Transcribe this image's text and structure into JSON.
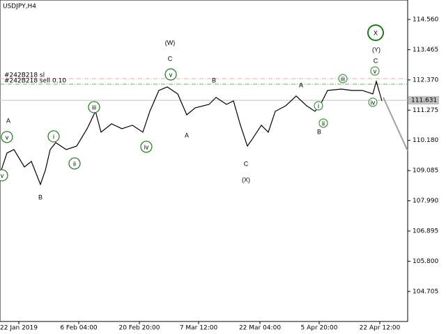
{
  "chart_data": {
    "type": "line",
    "symbol": "USDJPY,H4",
    "xlim": [
      0,
      585
    ],
    "ylim": [
      103.617,
      115.266
    ],
    "xticks": [
      {
        "value": 27,
        "label": "22 Jan 2019"
      },
      {
        "value": 113,
        "label": "6 Feb 04:00"
      },
      {
        "value": 200,
        "label": "20 Feb 20:00"
      },
      {
        "value": 285,
        "label": "7 Mar 12:00"
      },
      {
        "value": 373,
        "label": "22 Mar 04:00"
      },
      {
        "value": 458,
        "label": "5 Apr 20:00"
      },
      {
        "value": 545,
        "label": "22 Apr 12:00"
      }
    ],
    "yticks": [
      {
        "value": 114.56,
        "label": "114.560"
      },
      113.465,
      {
        "value": 112.37,
        "label": "112.370"
      },
      111.275,
      {
        "value": 110.18,
        "label": "110.180"
      },
      109.085,
      {
        "value": 107.99,
        "label": "107.990"
      },
      106.895,
      {
        "value": 105.8,
        "label": "105.800"
      },
      104.705
    ],
    "series": [
      {
        "color": "#000000",
        "x": [
          0,
          10,
          20,
          35,
          45,
          58,
          65,
          72,
          80,
          95,
          110,
          125,
          137,
          145,
          160,
          175,
          190,
          205,
          215,
          228,
          240,
          255,
          268,
          280,
          300,
          310,
          325,
          335,
          345,
          355,
          362,
          375,
          385,
          395,
          410,
          425,
          440,
          452,
          460,
          470,
          490,
          505,
          520,
          535,
          540,
          548
        ],
        "values": [
          108.963,
          109.72,
          109.846,
          109.215,
          109.417,
          108.585,
          109.089,
          109.846,
          110.098,
          109.846,
          109.972,
          110.602,
          111.232,
          110.476,
          110.778,
          110.602,
          110.728,
          110.476,
          111.232,
          111.989,
          112.115,
          111.863,
          111.106,
          111.358,
          111.484,
          111.736,
          111.484,
          111.61,
          110.728,
          109.972,
          110.224,
          110.728,
          110.476,
          111.232,
          111.434,
          111.787,
          111.434,
          111.232,
          111.484,
          111.989,
          112.039,
          111.989,
          111.989,
          111.863,
          112.316,
          111.61
        ]
      },
      {
        "color": "#a0a0a0",
        "x": [
          550,
          585
        ],
        "values": [
          111.736,
          109.8
        ]
      }
    ],
    "levels": [
      {
        "label": "#242B218 sl",
        "value": 112.417,
        "color": "#e8a898"
      },
      {
        "label": "#242B218 sell 0.10",
        "value": 112.215,
        "color": "#6aa86a"
      }
    ],
    "current_price": 111.631,
    "annotations": [
      {
        "text": "A",
        "x": 12,
        "y": 110.905,
        "style": "letter"
      },
      {
        "text": "v",
        "x": 10,
        "y": 110.3,
        "style": "circled"
      },
      {
        "text": "v",
        "x": 3,
        "y": 108.913,
        "style": "circled"
      },
      {
        "text": "B",
        "x": 58,
        "y": 108.131,
        "style": "letter"
      },
      {
        "text": "i",
        "x": 77,
        "y": 110.325,
        "style": "circled"
      },
      {
        "text": "ii",
        "x": 107,
        "y": 109.342,
        "style": "circled"
      },
      {
        "text": "iii",
        "x": 135,
        "y": 111.384,
        "style": "circled"
      },
      {
        "text": "iv",
        "x": 210,
        "y": 109.947,
        "style": "circled"
      },
      {
        "text": "v",
        "x": 245,
        "y": 112.568,
        "style": "circled"
      },
      {
        "text": "C",
        "x": 244,
        "y": 113.148,
        "style": "letter"
      },
      {
        "text": "(W)",
        "x": 244,
        "y": 113.728,
        "style": "degree"
      },
      {
        "text": "A",
        "x": 268,
        "y": 110.375,
        "style": "letter"
      },
      {
        "text": "B",
        "x": 307,
        "y": 112.367,
        "style": "letter"
      },
      {
        "text": "C",
        "x": 353,
        "y": 109.342,
        "style": "letter"
      },
      {
        "text": "(X)",
        "x": 353,
        "y": 108.762,
        "style": "degree"
      },
      {
        "text": "A",
        "x": 432,
        "y": 112.19,
        "style": "letter"
      },
      {
        "text": "i",
        "x": 457,
        "y": 111.434,
        "style": "small"
      },
      {
        "text": "B",
        "x": 458,
        "y": 110.501,
        "style": "letter"
      },
      {
        "text": "ii",
        "x": 464,
        "y": 110.804,
        "style": "small"
      },
      {
        "text": "iii",
        "x": 492,
        "y": 112.417,
        "style": "small"
      },
      {
        "text": "iv",
        "x": 535,
        "y": 111.56,
        "style": "small"
      },
      {
        "text": "v",
        "x": 538,
        "y": 112.694,
        "style": "small"
      },
      {
        "text": "C",
        "x": 539,
        "y": 113.073,
        "style": "letter"
      },
      {
        "text": "(Y)",
        "x": 540,
        "y": 113.476,
        "style": "degree"
      },
      {
        "text": "X",
        "x": 539,
        "y": 114.081,
        "style": "big"
      }
    ]
  }
}
